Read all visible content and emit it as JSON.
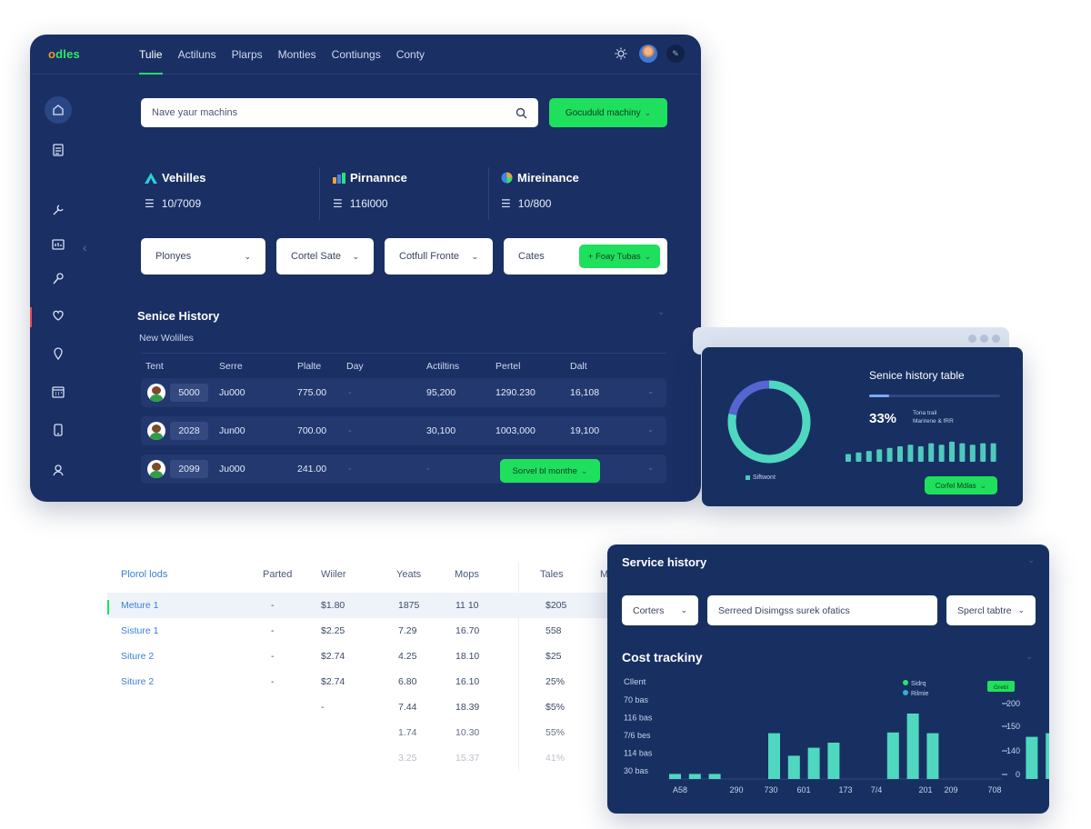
{
  "app": {
    "logo_prefix": "o",
    "logo_rest": "dles",
    "nav": [
      "Tulie",
      "Actiluns",
      "Plarps",
      "Monties",
      "Contiungs",
      "Conty"
    ]
  },
  "search": {
    "placeholder": "Nave yaur machins",
    "button": "Gocuduld machiny"
  },
  "stats": [
    {
      "title": "Vehilles",
      "value": "10/7009"
    },
    {
      "title": "Pirnannce",
      "value": "116l000"
    },
    {
      "title": "Mireinance",
      "value": "10/800"
    }
  ],
  "filters": [
    "Plonyes",
    "Cortel Sate",
    "Cotfull Fronte",
    "Cates"
  ],
  "filter_button": "+ Foay Tubas",
  "service_history": {
    "title": "Senice History",
    "subtitle": "New Wolilles",
    "columns": [
      "Tent",
      "Serre",
      "Plalte",
      "Day",
      "Actiltins",
      "Pertel",
      "Dalt"
    ],
    "rows": [
      {
        "id": "5000",
        "serre": "Ju000",
        "plate": "775.00",
        "day": "-",
        "actions": "95,200",
        "pertel": "1290.230",
        "date": "16,108"
      },
      {
        "id": "2028",
        "serre": "Jun00",
        "plate": "700.00",
        "day": "-",
        "actions": "30,100",
        "pertel": "1003,000",
        "date": "19,100"
      },
      {
        "id": "2099",
        "serre": "Ju000",
        "plate": "241.00",
        "day": "-",
        "actions": "-",
        "pertel": "",
        "date": ""
      }
    ],
    "row_button": "Sorvel bl monthe"
  },
  "small_card": {
    "title": "Senice history table",
    "percent": "33%",
    "mini_lines": [
      "Tona trail",
      "Marirene & fRR"
    ],
    "legend": "Siftwont",
    "button": "Corfel Mdlas",
    "donut_fraction": 0.78,
    "bars": [
      0.25,
      0.3,
      0.35,
      0.4,
      0.45,
      0.5,
      0.55,
      0.5,
      0.6,
      0.55,
      0.65,
      0.6,
      0.55,
      0.6,
      0.6
    ]
  },
  "bottom_table": {
    "columns": [
      "Plorol lods",
      "Parted",
      "Wiiler",
      "Yeats",
      "Mops",
      "Tales",
      "M"
    ],
    "rows": [
      {
        "name": "Meture 1",
        "parted": "-",
        "w": "$1.80",
        "y": "1875",
        "m": "11 10",
        "t": "$205",
        "hl": true
      },
      {
        "name": "Sisture 1",
        "parted": "-",
        "w": "$2.25",
        "y": "7.29",
        "m": "16.70",
        "t": "558",
        "hl": false
      },
      {
        "name": "Siture 2",
        "parted": "-",
        "w": "$2.74",
        "y": "4.25",
        "m": "18.10",
        "t": "$25",
        "hl": false
      },
      {
        "name": "Siture 2",
        "parted": "-",
        "w": "$2.74",
        "y": "6.80",
        "m": "16.10",
        "t": "25%",
        "hl": false
      },
      {
        "name": "",
        "parted": "",
        "w": "-",
        "y": "7.44",
        "m": "18.39",
        "t": "$5%",
        "hl": false
      },
      {
        "name": "",
        "parted": "",
        "w": "",
        "y": "1.74",
        "m": "10.30",
        "t": "55%",
        "hl": false
      },
      {
        "name": "",
        "parted": "",
        "w": "",
        "y": "3.25",
        "m": "15.37",
        "t": "41%",
        "hl": false
      }
    ]
  },
  "cost_card": {
    "header": "Service history",
    "filters": [
      "Corters",
      "Serreed Disimgss surek ofatics",
      "Spercl tabtre"
    ],
    "title": "Cost trackiny",
    "button": "Grebl"
  },
  "chart_data": {
    "type": "bar",
    "y_label": "Cllent",
    "left_ticks": [
      "70 bas",
      "116 bas",
      "7/6 bes",
      "114 bas",
      "30 bas"
    ],
    "right_ticks": [
      "200",
      "150",
      "140",
      "0"
    ],
    "x_ticks": [
      "A58",
      "290",
      "730",
      "601",
      "173",
      "7/4",
      "201",
      "209",
      "708"
    ],
    "legend": [
      "Sidrq",
      "Rilmie"
    ],
    "series_colors": {
      "primary": "#4fd8bf",
      "secondary": "#3ba9e0"
    },
    "values": [
      0.07,
      0.07,
      0.07,
      0,
      0,
      0.63,
      0.32,
      0.43,
      0.5,
      0,
      0,
      0.64,
      0.9,
      0.63,
      0,
      0,
      0,
      0,
      0.58,
      0.63,
      0.85
    ]
  }
}
